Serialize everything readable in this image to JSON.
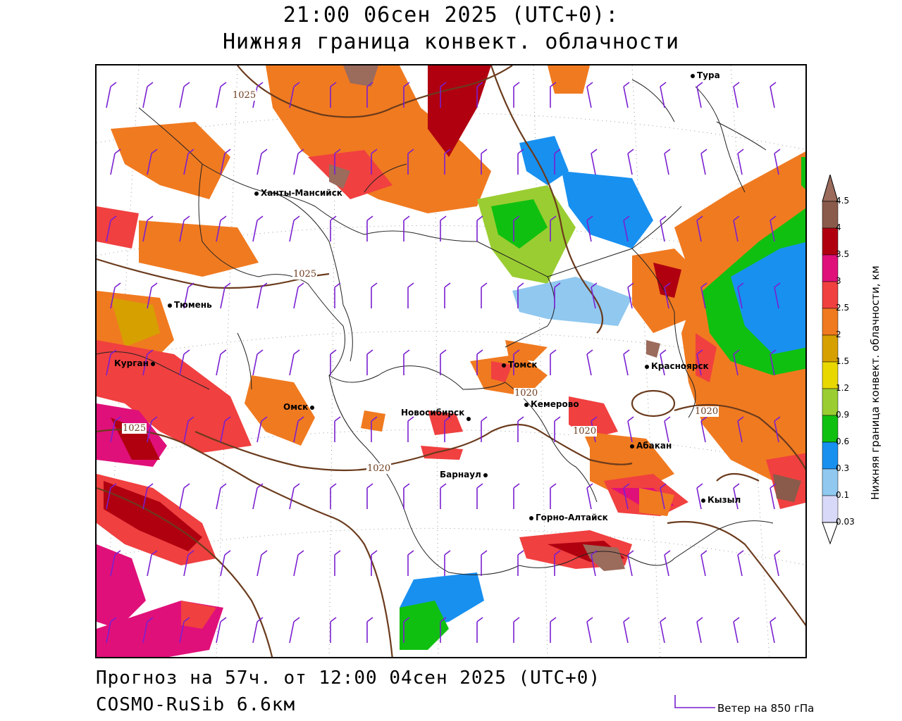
{
  "title": {
    "line1": "21:00 06сен 2025 (UTC+0):",
    "line2": "Нижняя граница конвект. облачности"
  },
  "footer": {
    "forecast": "Прогноз на 57ч. от 12:00 04сен 2025 (UTC+0)",
    "model": "COSMO-RuSib 6.6км",
    "wind_legend": "Ветер на 850 гПа"
  },
  "colorbar": {
    "title": "Нижняя граница конвект. облачности, км",
    "labels": [
      "4.5",
      "4",
      "3.5",
      "3",
      "2.5",
      "2",
      "1.5",
      "1.2",
      "0.9",
      "0.6",
      "0.3",
      "0.1",
      "0.03"
    ],
    "colors": [
      "#9b6b5c",
      "#8a5a4a",
      "#b00010",
      "#e0107a",
      "#f04040",
      "#f07a20",
      "#d6a000",
      "#e8d800",
      "#9acd32",
      "#10c010",
      "#1890f0",
      "#90c8f0",
      "#d8d8f8",
      "#ffffff"
    ]
  },
  "cities": [
    {
      "name": "Тура"
    },
    {
      "name": "Ханты-Мансийск"
    },
    {
      "name": "Тюмень"
    },
    {
      "name": "Курган"
    },
    {
      "name": "Омск"
    },
    {
      "name": "Томск"
    },
    {
      "name": "Красноярск"
    },
    {
      "name": "Кемерово"
    },
    {
      "name": "Новосибирск"
    },
    {
      "name": "Абакан"
    },
    {
      "name": "Барнаул"
    },
    {
      "name": "Кызыл"
    },
    {
      "name": "Горно-Алтайск"
    }
  ],
  "isobars": [
    "1025",
    "1025",
    "1020",
    "1020",
    "1020",
    "1025",
    "1020"
  ]
}
